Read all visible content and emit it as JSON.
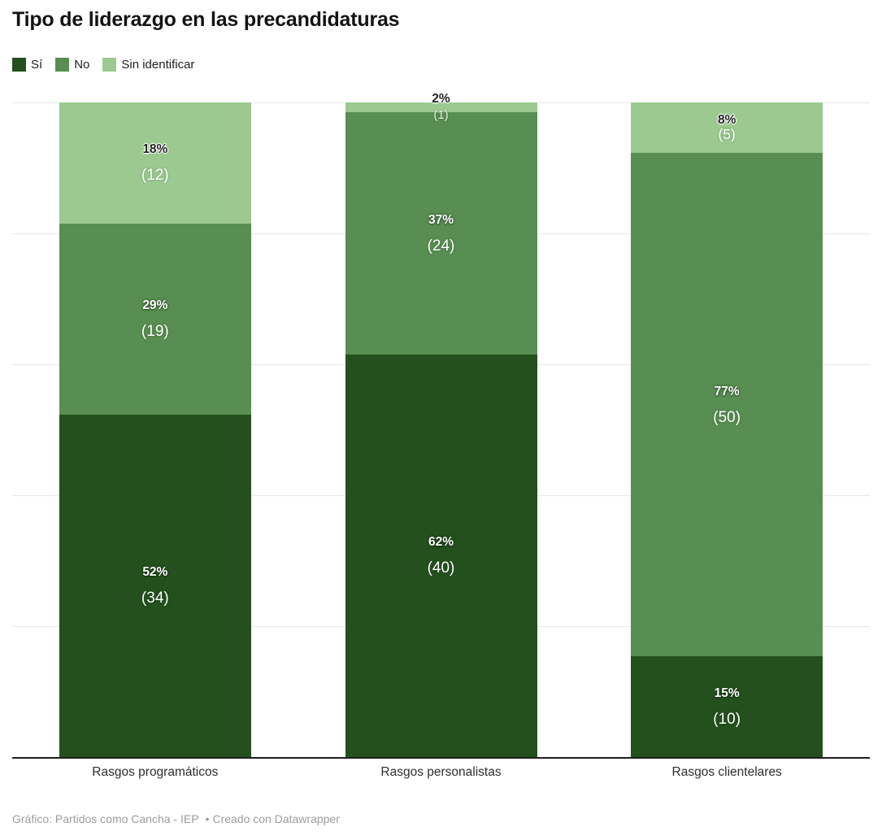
{
  "title": "Tipo de liderazgo en las precandidaturas",
  "legend": {
    "items": [
      {
        "label": "Sí",
        "color": "#24501e"
      },
      {
        "label": "No",
        "color": "#588e51"
      },
      {
        "label": "Sin identificar",
        "color": "#9bc98f"
      }
    ]
  },
  "footer": {
    "source": "Gráfico: Partidos como Cancha - IEP",
    "bullet": "•",
    "credit": "Creado con Datawrapper"
  },
  "chart_data": {
    "type": "bar",
    "subtype": "100-percent-stacked-column",
    "title": "Tipo de liderazgo en las precandidaturas",
    "categories": [
      "Rasgos programáticos",
      "Rasgos personalistas",
      "Rasgos clientelares"
    ],
    "total_per_category": [
      65,
      65,
      65
    ],
    "series": [
      {
        "name": "Sí",
        "color": "#24501e",
        "values_pct": [
          52,
          62,
          15
        ],
        "counts": [
          34,
          40,
          10
        ],
        "pct_labels": [
          "52%",
          "62%",
          "15%"
        ],
        "count_labels": [
          "(34)",
          "(40)",
          "(10)"
        ],
        "height_pct": [
          52.31,
          61.54,
          15.38
        ],
        "pct_label_color": "#ffffff"
      },
      {
        "name": "No",
        "color": "#588e51",
        "values_pct": [
          29,
          37,
          77
        ],
        "counts": [
          19,
          24,
          50
        ],
        "pct_labels": [
          "29%",
          "37%",
          "77%"
        ],
        "count_labels": [
          "(19)",
          "(24)",
          "(50)"
        ],
        "height_pct": [
          29.23,
          36.92,
          76.92
        ],
        "pct_label_color": "#ffffff"
      },
      {
        "name": "Sin identificar",
        "color": "#9bc98f",
        "values_pct": [
          18,
          2,
          8
        ],
        "counts": [
          12,
          1,
          5
        ],
        "pct_labels": [
          "18%",
          "2%",
          "8%"
        ],
        "count_labels": [
          "(12)",
          "(1)",
          "(5)"
        ],
        "height_pct": [
          18.46,
          1.54,
          7.69
        ],
        "pct_label_color": "#262626"
      }
    ],
    "xlabel": "",
    "ylabel": "",
    "ylim": [
      0,
      100
    ],
    "gridline_values": [
      100,
      80,
      60,
      40,
      20
    ],
    "grid": true,
    "legend_position": "top",
    "stack_order_bottom_to_top": [
      "Sí",
      "No",
      "Sin identificar"
    ]
  }
}
